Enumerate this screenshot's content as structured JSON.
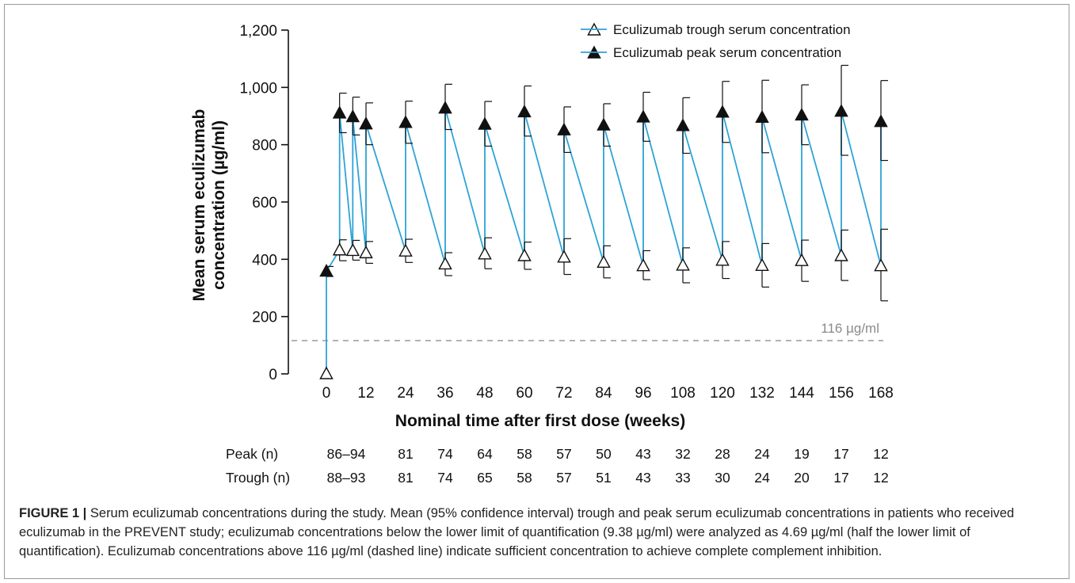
{
  "chart_data": {
    "type": "line",
    "title": "",
    "xlabel": "Nominal time after first dose (weeks)",
    "ylabel": "Mean serum eculizumab concentration (µg/ml)",
    "ylim": [
      0,
      1200
    ],
    "y_ticks": [
      0,
      200,
      400,
      600,
      800,
      1000,
      1200
    ],
    "y_tick_labels": [
      "0",
      "200",
      "400",
      "600",
      "800",
      "1,000",
      "1,200"
    ],
    "x_ticks": [
      0,
      12,
      24,
      36,
      48,
      60,
      72,
      84,
      96,
      108,
      120,
      132,
      144,
      156,
      168
    ],
    "x_tick_labels": [
      "0",
      "12",
      "24",
      "36",
      "48",
      "60",
      "72",
      "84",
      "96",
      "108",
      "120",
      "132",
      "144",
      "156",
      "168"
    ],
    "legend_position": "top-right",
    "grid": false,
    "series_color": "#2ea3d6",
    "series": [
      {
        "name": "Eculizumab trough serum concentration",
        "marker": "open-triangle",
        "points": [
          {
            "x": 0,
            "y": 0,
            "lo": null,
            "hi": null
          },
          {
            "x": 4,
            "y": 432,
            "lo": 395,
            "hi": 468
          },
          {
            "x": 8,
            "y": 430,
            "lo": 397,
            "hi": 466
          },
          {
            "x": 12,
            "y": 422,
            "lo": 386,
            "hi": 462
          },
          {
            "x": 24,
            "y": 428,
            "lo": 389,
            "hi": 470
          },
          {
            "x": 36,
            "y": 383,
            "lo": 343,
            "hi": 423
          },
          {
            "x": 48,
            "y": 418,
            "lo": 367,
            "hi": 475
          },
          {
            "x": 60,
            "y": 412,
            "lo": 365,
            "hi": 460
          },
          {
            "x": 72,
            "y": 407,
            "lo": 347,
            "hi": 472
          },
          {
            "x": 84,
            "y": 389,
            "lo": 335,
            "hi": 447
          },
          {
            "x": 96,
            "y": 377,
            "lo": 329,
            "hi": 430
          },
          {
            "x": 108,
            "y": 379,
            "lo": 318,
            "hi": 440
          },
          {
            "x": 120,
            "y": 396,
            "lo": 333,
            "hi": 462
          },
          {
            "x": 132,
            "y": 378,
            "lo": 303,
            "hi": 455
          },
          {
            "x": 144,
            "y": 395,
            "lo": 323,
            "hi": 467
          },
          {
            "x": 156,
            "y": 412,
            "lo": 326,
            "hi": 502
          },
          {
            "x": 168,
            "y": 377,
            "lo": 255,
            "hi": 505
          }
        ]
      },
      {
        "name": "Eculizumab peak serum concentration",
        "marker": "filled-triangle",
        "points": [
          {
            "x": 0,
            "y": 358,
            "lo": 340,
            "hi": 375
          },
          {
            "x": 4,
            "y": 910,
            "lo": 842,
            "hi": 980
          },
          {
            "x": 8,
            "y": 897,
            "lo": 834,
            "hi": 966
          },
          {
            "x": 12,
            "y": 872,
            "lo": 800,
            "hi": 946
          },
          {
            "x": 24,
            "y": 877,
            "lo": 805,
            "hi": 952
          },
          {
            "x": 36,
            "y": 927,
            "lo": 853,
            "hi": 1011
          },
          {
            "x": 48,
            "y": 871,
            "lo": 795,
            "hi": 951
          },
          {
            "x": 60,
            "y": 914,
            "lo": 830,
            "hi": 1005
          },
          {
            "x": 72,
            "y": 851,
            "lo": 773,
            "hi": 932
          },
          {
            "x": 84,
            "y": 868,
            "lo": 795,
            "hi": 943
          },
          {
            "x": 96,
            "y": 896,
            "lo": 812,
            "hi": 983
          },
          {
            "x": 108,
            "y": 866,
            "lo": 770,
            "hi": 964
          },
          {
            "x": 120,
            "y": 913,
            "lo": 808,
            "hi": 1021
          },
          {
            "x": 132,
            "y": 895,
            "lo": 772,
            "hi": 1025
          },
          {
            "x": 144,
            "y": 903,
            "lo": 800,
            "hi": 1009
          },
          {
            "x": 156,
            "y": 916,
            "lo": 763,
            "hi": 1077
          },
          {
            "x": 168,
            "y": 880,
            "lo": 745,
            "hi": 1024
          }
        ]
      }
    ],
    "reference_line": {
      "y": 116,
      "label": "116 µg/ml",
      "style": "dashed",
      "color": "#9a9a9a"
    },
    "n_table": {
      "x_positions": [
        6,
        24,
        36,
        48,
        60,
        72,
        84,
        96,
        108,
        120,
        132,
        144,
        156,
        168
      ],
      "rows": [
        {
          "label": "Peak (n)",
          "values": [
            "86–94",
            "81",
            "74",
            "64",
            "58",
            "57",
            "50",
            "43",
            "32",
            "28",
            "24",
            "19",
            "17",
            "12"
          ]
        },
        {
          "label": "Trough (n)",
          "values": [
            "88–93",
            "81",
            "74",
            "65",
            "58",
            "57",
            "51",
            "43",
            "33",
            "30",
            "24",
            "20",
            "17",
            "12"
          ]
        }
      ]
    }
  },
  "caption": {
    "label": "FIGURE 1 |",
    "text": " Serum eculizumab concentrations during the study. Mean (95% confidence interval) trough and peak serum eculizumab concentrations in patients who received eculizumab in the PREVENT study; eculizumab concentrations below the lower limit of quantification (9.38 µg/ml) were analyzed as 4.69 µg/ml (half the lower limit of quantification). Eculizumab concentrations above 116 µg/ml (dashed line) indicate sufficient concentration to achieve complete complement inhibition."
  }
}
